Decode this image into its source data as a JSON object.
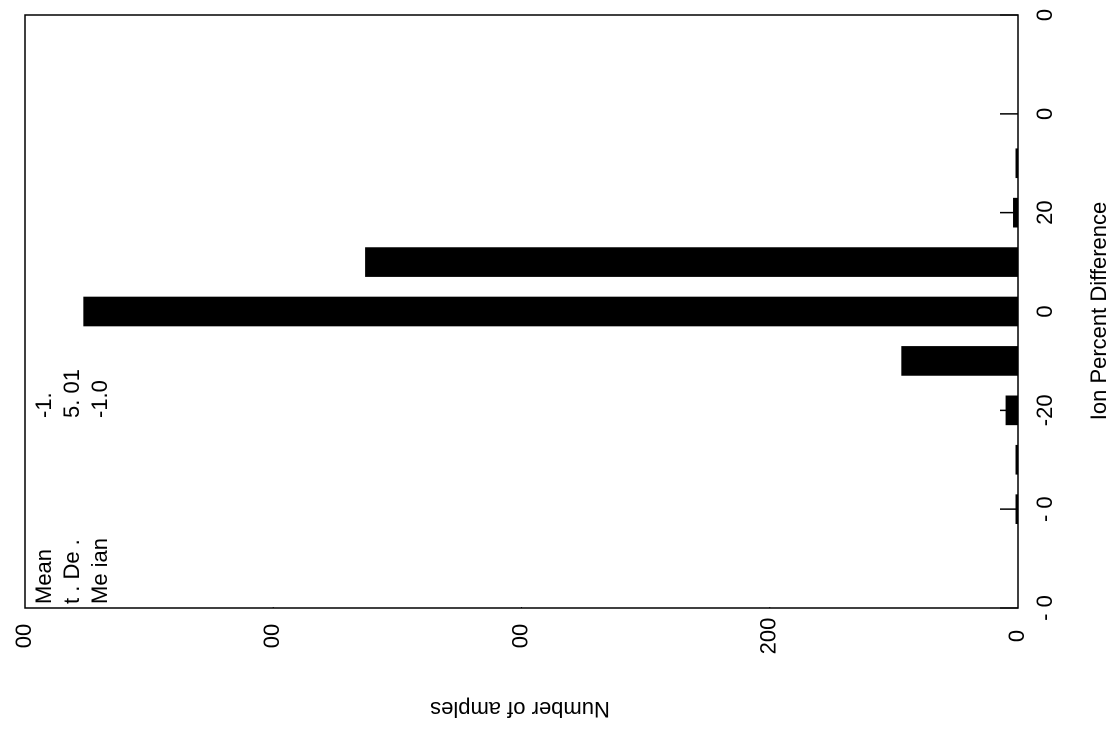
{
  "chart_data": {
    "type": "histogram",
    "xlabel": "Ion Percent Difference",
    "ylabel": "Number of amples",
    "bins": [
      -45,
      -35,
      -25,
      -15,
      -5,
      5,
      15,
      25,
      35
    ],
    "values": [
      2,
      2,
      10,
      94,
      753,
      526,
      4,
      2
    ],
    "color": "#000000",
    "xlim": [
      -60,
      60
    ],
    "xticks": [
      {
        "value": -60,
        "label": "- 0"
      },
      {
        "value": -40,
        "label": "- 0"
      },
      -20,
      0,
      20,
      {
        "value": 40,
        "label": "0"
      },
      {
        "value": 60,
        "label": "0"
      }
    ],
    "ylim": [
      0,
      800
    ],
    "yticks": [
      0,
      200,
      {
        "value": 400,
        "label": "00"
      },
      {
        "value": 600,
        "label": "00"
      },
      {
        "value": 800,
        "label": "00"
      }
    ],
    "annotations": [
      {
        "label": "Mean",
        "value": "-1."
      },
      {
        "label": "t . De .",
        "value": "5. 01"
      },
      {
        "label": "Me ian",
        "value": "-1.0"
      }
    ]
  }
}
